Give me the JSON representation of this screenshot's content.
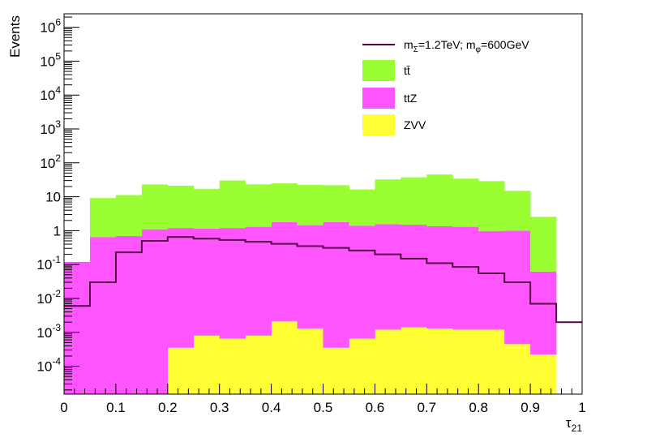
{
  "chart_data": {
    "type": "histogram",
    "title": "",
    "stacked": true,
    "xlabel": "τ",
    "xlabel_sub": "21",
    "ylabel": "Events",
    "xlim": [
      0,
      1
    ],
    "ylim": [
      1.5e-05,
      2500000
    ],
    "y_scale": "log",
    "bin_edges": [
      0,
      0.05,
      0.1,
      0.15,
      0.2,
      0.25,
      0.3,
      0.35,
      0.4,
      0.45,
      0.5,
      0.55,
      0.6,
      0.65,
      0.7,
      0.75,
      0.8,
      0.85,
      0.9,
      0.95,
      1.0
    ],
    "x_ticks": [
      "0",
      "0.1",
      "0.2",
      "0.3",
      "0.4",
      "0.5",
      "0.6",
      "0.7",
      "0.8",
      "0.9",
      "1"
    ],
    "y_ticks": [
      {
        "value": 0.0001,
        "base": "10",
        "exp": "-4"
      },
      {
        "value": 0.001,
        "base": "10",
        "exp": "-3"
      },
      {
        "value": 0.01,
        "base": "10",
        "exp": "-2"
      },
      {
        "value": 0.1,
        "base": "10",
        "exp": "-1"
      },
      {
        "value": 1,
        "base": "1",
        "exp": ""
      },
      {
        "value": 10,
        "base": "10",
        "exp": ""
      },
      {
        "value": 100,
        "base": "10",
        "exp": "2"
      },
      {
        "value": 1000,
        "base": "10",
        "exp": "3"
      },
      {
        "value": 10000,
        "base": "10",
        "exp": "4"
      },
      {
        "value": 100000,
        "base": "10",
        "exp": "5"
      },
      {
        "value": 1000000,
        "base": "10",
        "exp": "6"
      }
    ],
    "stack_order_bottom_to_top": [
      "ZVV",
      "ttZ",
      "tt̄"
    ],
    "series": [
      {
        "name": "ZVV",
        "color": "#ffff33",
        "values": [
          0,
          0,
          0,
          0,
          0.00035,
          0.0008,
          0.00065,
          0.0008,
          0.0021,
          0.0013,
          0.00035,
          0.00065,
          0.0012,
          0.0014,
          0.0013,
          0.0012,
          0.0012,
          0.00045,
          0.00022,
          0
        ]
      },
      {
        "name": "ttZ",
        "color": "#ff55ff",
        "values": [
          0.12,
          0.65,
          0.7,
          1.1,
          1.2,
          1.15,
          1.2,
          1.3,
          1.8,
          1.45,
          1.8,
          1.4,
          1.55,
          1.5,
          1.35,
          1.3,
          0.98,
          1.0,
          0.062,
          0
        ]
      },
      {
        "name": "tt̄",
        "color": "#99ff33",
        "values": [
          0,
          8.5,
          10.5,
          22,
          20,
          16,
          29,
          22,
          23,
          21,
          20,
          15,
          31,
          36,
          44,
          33,
          28,
          14,
          2.5,
          0
        ]
      }
    ],
    "signal": {
      "name": "mΣ=1.2TeV; mφ=600GeV",
      "color": "#550044",
      "values": [
        0.006,
        0.03,
        0.23,
        0.5,
        0.65,
        0.58,
        0.53,
        0.47,
        0.41,
        0.35,
        0.31,
        0.26,
        0.2,
        0.15,
        0.11,
        0.085,
        0.055,
        0.03,
        0.007,
        0.002
      ]
    },
    "legend": {
      "position": "top-right",
      "entries": [
        {
          "key": "signal",
          "type": "line",
          "color": "#550044",
          "parts": [
            {
              "t": "m",
              "s": ""
            },
            {
              "t": "Σ",
              "s": "sub"
            },
            {
              "t": "=1.2TeV; m",
              "s": ""
            },
            {
              "t": "φ",
              "s": "sub"
            },
            {
              "t": "=600GeV",
              "s": ""
            }
          ]
        },
        {
          "key": "ttbar",
          "type": "box",
          "color": "#99ff33",
          "parts": [
            {
              "t": "tt̄",
              "s": ""
            }
          ]
        },
        {
          "key": "ttz",
          "type": "box",
          "color": "#ff55ff",
          "parts": [
            {
              "t": "ttZ",
              "s": ""
            }
          ]
        },
        {
          "key": "zvv",
          "type": "box",
          "color": "#ffff33",
          "parts": [
            {
              "t": "ZVV",
              "s": ""
            }
          ]
        }
      ]
    }
  }
}
